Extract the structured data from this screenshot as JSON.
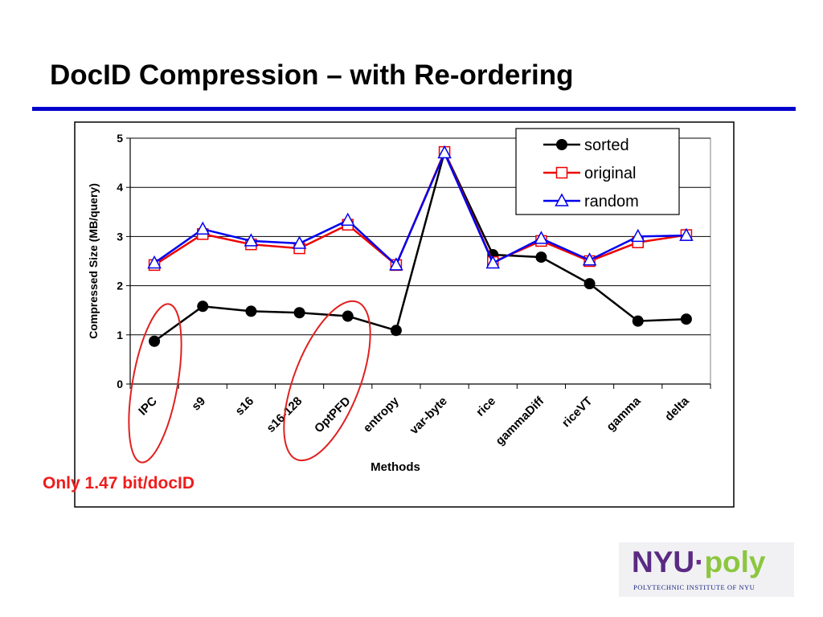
{
  "slide": {
    "title": "DocID Compression – with Re-ordering",
    "annotation": "Only 1.47 bit/docID"
  },
  "logo": {
    "nyu": "NYU",
    "dot": "·",
    "poly": "poly",
    "subtitle": "POLYTECHNIC INSTITUTE OF NYU"
  },
  "colors": {
    "title_rule": "#0000cc",
    "annotation": "#ee1c1c",
    "highlight_ellipse": "#e02020"
  },
  "chart_data": {
    "type": "line",
    "title": "",
    "xlabel": "Methods",
    "ylabel": "Compressed Size (MB/query)",
    "ylim": [
      0,
      5
    ],
    "yticks": [
      0,
      1,
      2,
      3,
      4,
      5
    ],
    "grid": true,
    "legend_position": "top-right",
    "categories": [
      "IPC",
      "s9",
      "s16",
      "s16-128",
      "OptPFD",
      "entropy",
      "var-byte",
      "rice",
      "gammaDiff",
      "riceVT",
      "gamma",
      "delta"
    ],
    "series": [
      {
        "name": "sorted",
        "color": "#000000",
        "marker": "circle",
        "values": [
          0.87,
          1.58,
          1.48,
          1.45,
          1.38,
          1.09,
          4.72,
          2.63,
          2.58,
          2.04,
          1.28,
          1.32
        ]
      },
      {
        "name": "original",
        "color": "#ee0000",
        "marker": "square",
        "values": [
          2.42,
          3.05,
          2.84,
          2.76,
          3.24,
          2.42,
          4.72,
          2.48,
          2.91,
          2.5,
          2.88,
          3.03
        ]
      },
      {
        "name": "random",
        "color": "#0000ee",
        "marker": "triangle",
        "values": [
          2.46,
          3.15,
          2.91,
          2.86,
          3.33,
          2.42,
          4.7,
          2.46,
          2.96,
          2.52,
          3.0,
          3.02
        ]
      }
    ],
    "highlighted_categories": [
      "IPC",
      "OptPFD"
    ]
  }
}
